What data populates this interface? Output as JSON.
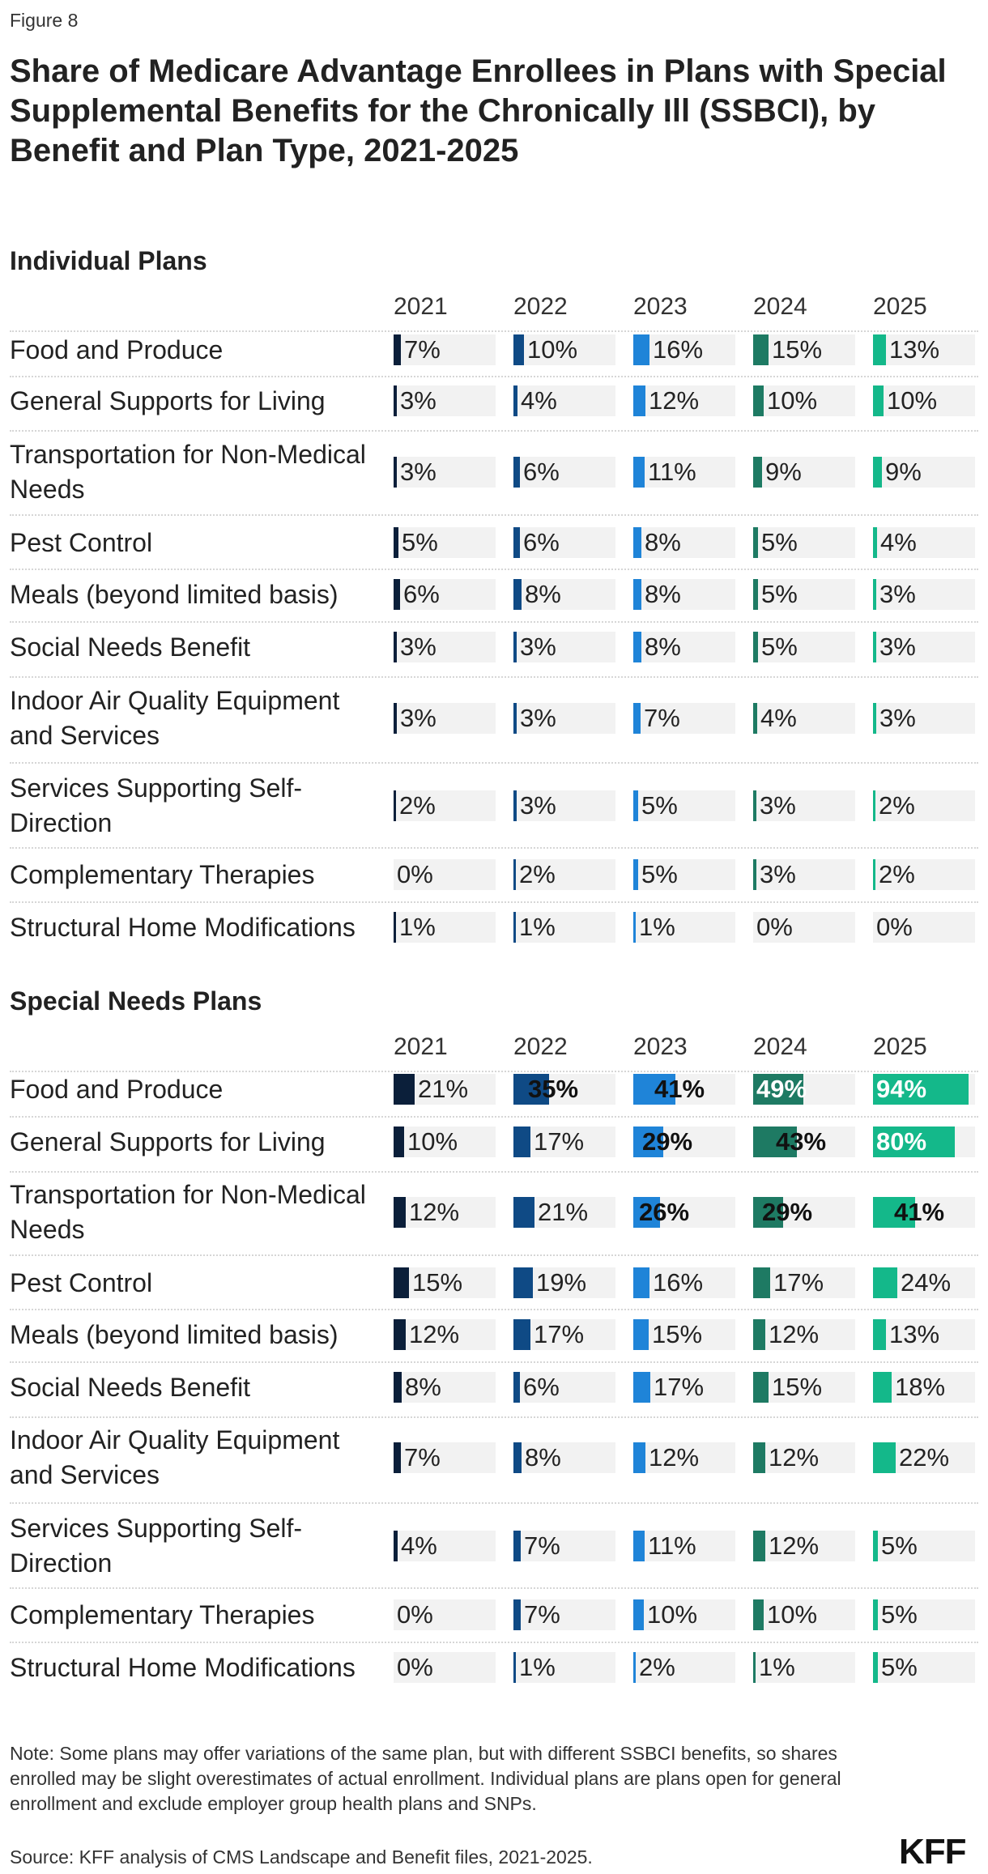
{
  "figure_label": "Figure 8",
  "title": "Share of Medicare Advantage Enrollees in Plans with Special Supplemental Benefits for the Chronically Ill (SSBCI), by Benefit and Plan Type, 2021-2025",
  "colors": {
    "2021": "#0b1f3a",
    "2022": "#0f4a85",
    "2023": "#1f84d8",
    "2024": "#1e7a63",
    "2025": "#14b88a",
    "cell_background": "#f2f2f2"
  },
  "chart_data": {
    "type": "table",
    "years": [
      "2021",
      "2022",
      "2023",
      "2024",
      "2025"
    ],
    "value_unit": "%",
    "sections": [
      {
        "name": "Individual Plans",
        "rows": [
          {
            "label": "Food and Produce",
            "values": [
              7,
              10,
              16,
              15,
              13
            ]
          },
          {
            "label": "General Supports for Living",
            "values": [
              3,
              4,
              12,
              10,
              10
            ]
          },
          {
            "label": "Transportation for Non-Medical Needs",
            "values": [
              3,
              6,
              11,
              9,
              9
            ]
          },
          {
            "label": "Pest Control",
            "values": [
              5,
              6,
              8,
              5,
              4
            ]
          },
          {
            "label": "Meals (beyond limited basis)",
            "values": [
              6,
              8,
              8,
              5,
              3
            ]
          },
          {
            "label": "Social Needs Benefit",
            "values": [
              3,
              3,
              8,
              5,
              3
            ]
          },
          {
            "label": "Indoor Air Quality Equipment and Services",
            "values": [
              3,
              3,
              7,
              4,
              3
            ]
          },
          {
            "label": "Services Supporting Self-Direction",
            "values": [
              2,
              3,
              5,
              3,
              2
            ]
          },
          {
            "label": "Complementary Therapies",
            "values": [
              0,
              2,
              5,
              3,
              2
            ]
          },
          {
            "label": "Structural Home Modifications",
            "values": [
              1,
              1,
              1,
              0,
              0
            ]
          }
        ]
      },
      {
        "name": "Special Needs Plans",
        "rows": [
          {
            "label": "Food and Produce",
            "values": [
              21,
              35,
              41,
              49,
              94
            ]
          },
          {
            "label": "General Supports for Living",
            "values": [
              10,
              17,
              29,
              43,
              80
            ]
          },
          {
            "label": "Transportation for Non-Medical Needs",
            "values": [
              12,
              21,
              26,
              29,
              41
            ]
          },
          {
            "label": "Pest Control",
            "values": [
              15,
              19,
              16,
              17,
              24
            ]
          },
          {
            "label": "Meals (beyond limited basis)",
            "values": [
              12,
              17,
              15,
              12,
              13
            ]
          },
          {
            "label": "Social Needs Benefit",
            "values": [
              8,
              6,
              17,
              15,
              18
            ]
          },
          {
            "label": "Indoor Air Quality Equipment and Services",
            "values": [
              7,
              8,
              12,
              12,
              22
            ]
          },
          {
            "label": "Services Supporting Self-Direction",
            "values": [
              4,
              7,
              11,
              12,
              5
            ]
          },
          {
            "label": "Complementary Therapies",
            "values": [
              0,
              7,
              10,
              10,
              5
            ]
          },
          {
            "label": "Structural Home Modifications",
            "values": [
              0,
              1,
              2,
              1,
              5
            ]
          }
        ]
      }
    ]
  },
  "note": "Note: Some plans may offer variations of the same plan, but with different SSBCI benefits, so shares enrolled may be slight overestimates of actual enrollment. Individual plans are plans open for general enrollment and exclude employer group health plans and SNPs.",
  "source": "Source: KFF analysis of CMS Landscape and Benefit files, 2021-2025.",
  "logo_text": "KFF"
}
